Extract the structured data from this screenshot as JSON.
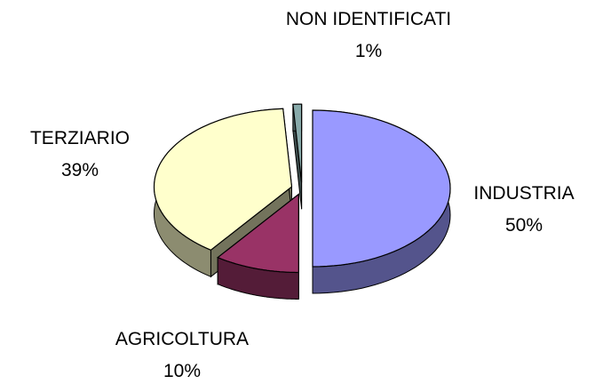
{
  "chart_data": {
    "type": "pie",
    "categories": [
      "INDUSTRIA",
      "AGRICOLTURA",
      "TERZIARIO",
      "NON IDENTIFICATI"
    ],
    "values": [
      50,
      10,
      39,
      1
    ],
    "value_labels": [
      "50%",
      "10%",
      "39%",
      "1%"
    ],
    "colors": [
      "#9999ff",
      "#993366",
      "#ffffcc",
      "#88aaaa"
    ]
  }
}
